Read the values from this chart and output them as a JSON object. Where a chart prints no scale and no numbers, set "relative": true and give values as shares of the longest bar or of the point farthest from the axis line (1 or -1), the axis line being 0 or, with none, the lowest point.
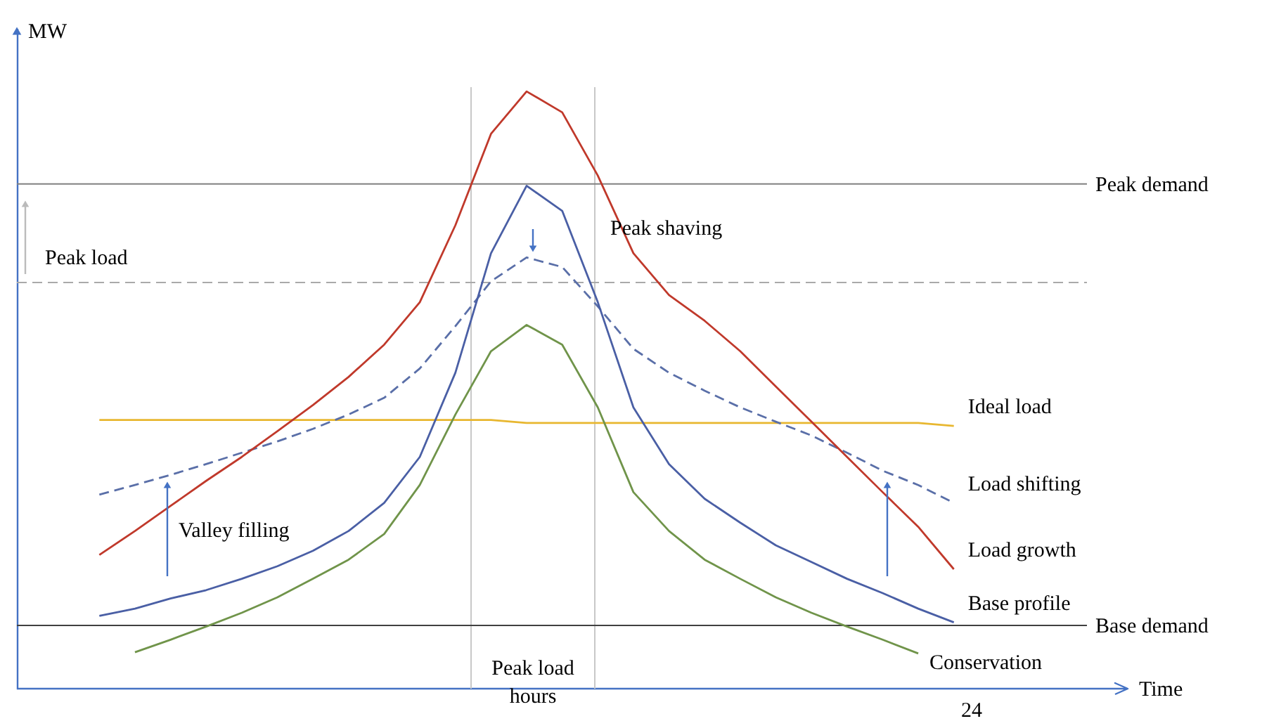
{
  "chart_data": {
    "type": "line",
    "relative": true,
    "ylabel": "MW",
    "legend": false,
    "grid": false,
    "marker": "none",
    "categories": [
      null,
      null,
      null,
      null,
      null,
      null,
      null,
      null,
      null,
      null,
      null,
      null,
      null,
      null,
      null,
      null,
      null,
      null,
      null,
      null,
      null,
      null,
      null,
      null,
      null
    ],
    "series": [
      {
        "name": "Ideal load",
        "color": "#e8b730",
        "values": [
          0.45,
          0.45,
          0.45,
          0.45,
          0.45,
          0.45,
          0.45,
          0.45,
          0.45,
          0.45,
          0.45,
          0.45,
          0.445,
          0.445,
          0.445,
          0.445,
          0.445,
          0.445,
          0.445,
          0.445,
          0.445,
          0.445,
          0.445,
          0.445,
          0.44
        ]
      },
      {
        "name": "Load shifting",
        "color": "#5a6fa8",
        "line_style": "dashed",
        "values": [
          0.325,
          0.341,
          0.358,
          0.376,
          0.395,
          0.414,
          0.435,
          0.459,
          0.487,
          0.536,
          0.607,
          0.682,
          0.722,
          0.706,
          0.64,
          0.569,
          0.529,
          0.499,
          0.471,
          0.447,
          0.424,
          0.395,
          0.365,
          0.341,
          0.311
        ]
      },
      {
        "name": "Load growth",
        "color": "#c0392b",
        "values": [
          0.224,
          0.264,
          0.306,
          0.348,
          0.388,
          0.431,
          0.475,
          0.522,
          0.576,
          0.647,
          0.776,
          0.929,
          1.0,
          0.965,
          0.859,
          0.729,
          0.659,
          0.616,
          0.565,
          0.506,
          0.447,
          0.388,
          0.329,
          0.271,
          0.2
        ]
      },
      {
        "name": "Base profile",
        "color": "#4a5fa5",
        "values": [
          0.122,
          0.134,
          0.151,
          0.165,
          0.184,
          0.205,
          0.231,
          0.264,
          0.311,
          0.388,
          0.529,
          0.729,
          0.842,
          0.8,
          0.647,
          0.471,
          0.376,
          0.318,
          0.278,
          0.24,
          0.212,
          0.184,
          0.16,
          0.134,
          0.111
        ]
      },
      {
        "name": "Conservation",
        "color": "#70944a",
        "values": [
          null,
          0.061,
          0.082,
          0.104,
          0.127,
          0.153,
          0.184,
          0.216,
          0.259,
          0.341,
          0.459,
          0.565,
          0.609,
          0.576,
          0.471,
          0.329,
          0.264,
          0.216,
          0.184,
          0.153,
          0.127,
          0.104,
          0.082,
          0.059,
          null
        ]
      }
    ],
    "ref_lines": [
      {
        "axis": "y",
        "value": 0.845,
        "label": "Peak demand",
        "color": "#808080"
      },
      {
        "axis": "y",
        "value": 0.68,
        "color": "#aaaaaa",
        "line_style": "dashed"
      },
      {
        "axis": "y",
        "value": 0.106,
        "label": "Base demand",
        "color": "#404040"
      }
    ],
    "annotations": [
      "Peak load",
      "Peak shaving",
      "Valley filling",
      "Peak load hours",
      "24",
      "Time"
    ]
  }
}
